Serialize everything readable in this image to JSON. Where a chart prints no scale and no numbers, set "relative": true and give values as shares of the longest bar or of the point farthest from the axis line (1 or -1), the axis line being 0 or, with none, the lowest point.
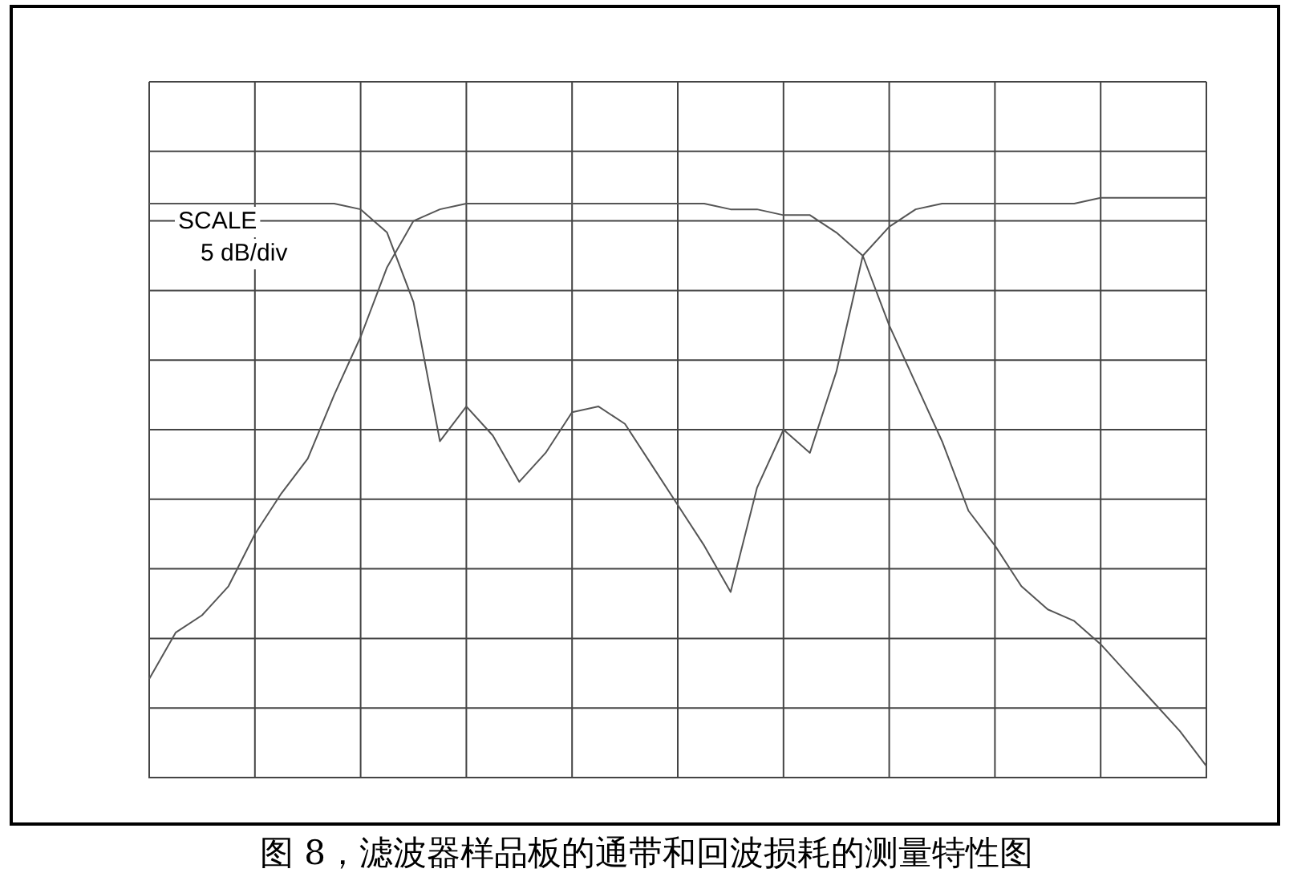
{
  "chart_data": {
    "type": "line",
    "title": "图 8，滤波器样品板的通带和回波损耗的测量特性图",
    "relative": true,
    "grid": true,
    "legend": false,
    "marker": "none",
    "line_style": "solid",
    "annotations": [
      "SCALE\n5 dB/div"
    ],
    "categories": [
      null,
      null,
      null,
      null,
      null,
      null,
      null,
      null,
      null,
      null,
      null,
      null,
      null,
      null,
      null,
      null,
      null,
      null,
      null,
      null,
      null,
      null,
      null,
      null,
      null,
      null,
      null,
      null,
      null,
      null,
      null,
      null,
      null,
      null,
      null,
      null,
      null,
      null,
      null,
      null,
      null
    ],
    "series": [
      {
        "color": "#555555",
        "values": [
          0.17,
          0.25,
          0.28,
          0.33,
          0.42,
          0.49,
          0.55,
          0.66,
          0.76,
          0.88,
          0.96,
          0.98,
          0.99,
          0.99,
          0.99,
          0.99,
          0.99,
          0.99,
          0.99,
          0.99,
          0.99,
          0.99,
          0.98,
          0.98,
          0.97,
          0.97,
          0.94,
          0.9,
          0.78,
          0.68,
          0.58,
          0.46,
          0.4,
          0.33,
          0.29,
          0.27,
          0.23,
          0.18,
          0.13,
          0.08,
          0.02
        ]
      },
      {
        "color": "#555555",
        "values": [
          0.99,
          0.99,
          0.99,
          0.99,
          0.99,
          0.99,
          0.99,
          0.99,
          0.98,
          0.94,
          0.82,
          0.58,
          0.64,
          0.59,
          0.51,
          0.56,
          0.63,
          0.64,
          0.61,
          0.54,
          0.47,
          0.4,
          0.32,
          0.5,
          0.6,
          0.56,
          0.7,
          0.9,
          0.95,
          0.98,
          0.99,
          0.99,
          0.99,
          0.99,
          0.99,
          0.99,
          1,
          1,
          1,
          1,
          1
        ]
      }
    ]
  }
}
